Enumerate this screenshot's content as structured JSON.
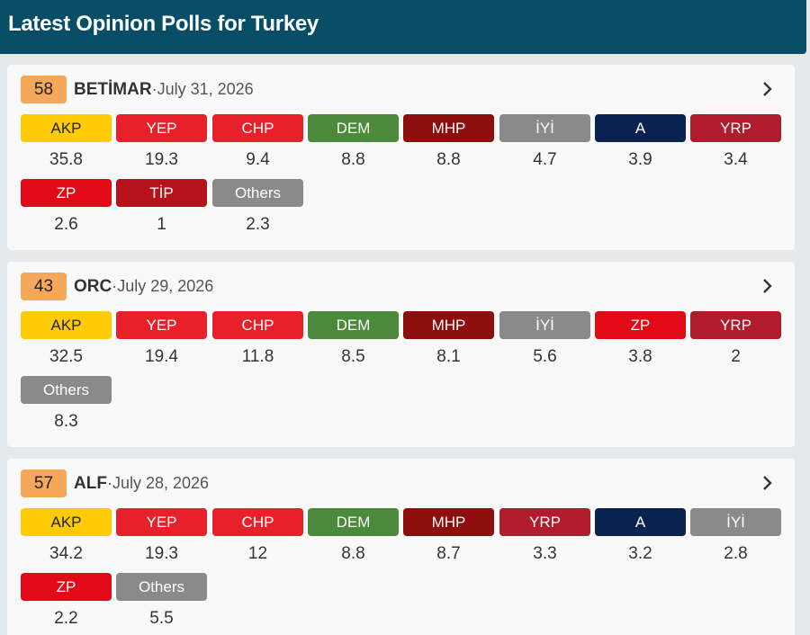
{
  "header": {
    "title": "Latest Opinion Polls for Turkey"
  },
  "polls": [
    {
      "score": "58",
      "pollster": "BETİMAR",
      "sep": "·",
      "date": "July 31, 2026",
      "parties": [
        {
          "name": "AKP",
          "value": "35.8",
          "color": "#ffcb05",
          "text": "#222"
        },
        {
          "name": "YEP",
          "value": "19.3",
          "color": "#e8202a",
          "text": "#fff"
        },
        {
          "name": "CHP",
          "value": "9.4",
          "color": "#e8202a",
          "text": "#fff"
        },
        {
          "name": "DEM",
          "value": "8.8",
          "color": "#4b8a3a",
          "text": "#fff"
        },
        {
          "name": "MHP",
          "value": "8.8",
          "color": "#8e0d0d",
          "text": "#fff"
        },
        {
          "name": "İYİ",
          "value": "4.7",
          "color": "#8a8a8a",
          "text": "#fff"
        },
        {
          "name": "A",
          "value": "3.9",
          "color": "#0a2250",
          "text": "#fff"
        },
        {
          "name": "YRP",
          "value": "3.4",
          "color": "#b01c2c",
          "text": "#fff"
        },
        {
          "name": "ZP",
          "value": "2.6",
          "color": "#e30a17",
          "text": "#fff"
        },
        {
          "name": "TİP",
          "value": "1",
          "color": "#b5121b",
          "text": "#fff"
        },
        {
          "name": "Others",
          "value": "2.3",
          "color": "#8a8a8a",
          "text": "#fff"
        }
      ]
    },
    {
      "score": "43",
      "pollster": "ORC",
      "sep": "·",
      "date": "July 29, 2026",
      "parties": [
        {
          "name": "AKP",
          "value": "32.5",
          "color": "#ffcb05",
          "text": "#222"
        },
        {
          "name": "YEP",
          "value": "19.4",
          "color": "#e8202a",
          "text": "#fff"
        },
        {
          "name": "CHP",
          "value": "11.8",
          "color": "#e8202a",
          "text": "#fff"
        },
        {
          "name": "DEM",
          "value": "8.5",
          "color": "#4b8a3a",
          "text": "#fff"
        },
        {
          "name": "MHP",
          "value": "8.1",
          "color": "#8e0d0d",
          "text": "#fff"
        },
        {
          "name": "İYİ",
          "value": "5.6",
          "color": "#8a8a8a",
          "text": "#fff"
        },
        {
          "name": "ZP",
          "value": "3.8",
          "color": "#e30a17",
          "text": "#fff"
        },
        {
          "name": "YRP",
          "value": "2",
          "color": "#b01c2c",
          "text": "#fff"
        },
        {
          "name": "Others",
          "value": "8.3",
          "color": "#8a8a8a",
          "text": "#fff"
        }
      ]
    },
    {
      "score": "57",
      "pollster": "ALF",
      "sep": "·",
      "date": "July 28, 2026",
      "parties": [
        {
          "name": "AKP",
          "value": "34.2",
          "color": "#ffcb05",
          "text": "#222"
        },
        {
          "name": "YEP",
          "value": "19.3",
          "color": "#e8202a",
          "text": "#fff"
        },
        {
          "name": "CHP",
          "value": "12",
          "color": "#e8202a",
          "text": "#fff"
        },
        {
          "name": "DEM",
          "value": "8.8",
          "color": "#4b8a3a",
          "text": "#fff"
        },
        {
          "name": "MHP",
          "value": "8.7",
          "color": "#8e0d0d",
          "text": "#fff"
        },
        {
          "name": "YRP",
          "value": "3.3",
          "color": "#b01c2c",
          "text": "#fff"
        },
        {
          "name": "A",
          "value": "3.2",
          "color": "#0a2250",
          "text": "#fff"
        },
        {
          "name": "İYİ",
          "value": "2.8",
          "color": "#8a8a8a",
          "text": "#fff"
        },
        {
          "name": "ZP",
          "value": "2.2",
          "color": "#e30a17",
          "text": "#fff"
        },
        {
          "name": "Others",
          "value": "5.5",
          "color": "#8a8a8a",
          "text": "#fff"
        }
      ]
    }
  ]
}
